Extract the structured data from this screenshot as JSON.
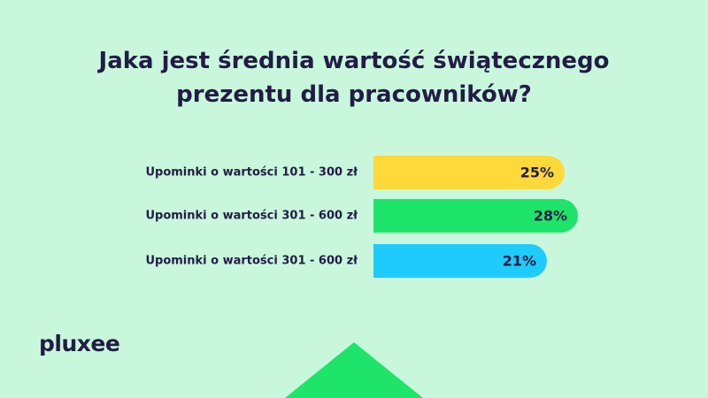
{
  "chart_data": {
    "type": "bar",
    "orientation": "horizontal",
    "title": "Jaka jest średnia wartość świątecznego prezentu dla pracowników?",
    "categories": [
      "Upominki o wartości 101 - 300 zł",
      "Upominki o wartości 301 - 600 zł",
      "Upominki o wartości 301 - 600 zł"
    ],
    "values": [
      25,
      28,
      21
    ],
    "value_labels": [
      "25%",
      "28%",
      "21%"
    ],
    "colors": [
      "#ffd83a",
      "#1ee56a",
      "#1ecbfa"
    ]
  },
  "logo": "pluxee"
}
